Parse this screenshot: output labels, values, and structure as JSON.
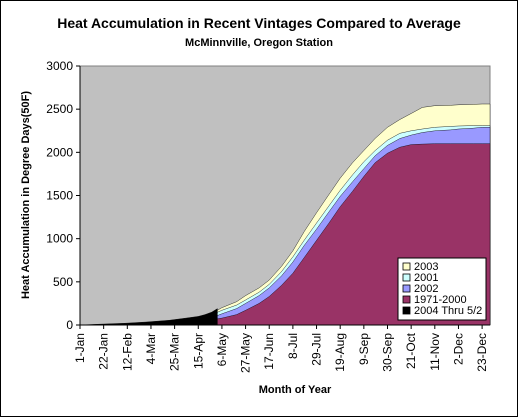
{
  "chart_data": {
    "type": "area",
    "title": "Heat Accumulation in Recent Vintages Compared to Average",
    "subtitle": "McMinnville, Oregon Station",
    "xlabel": "Month of Year",
    "ylabel": "Heat Accumulation in Degree Days(50F)",
    "ylim": [
      0,
      3000
    ],
    "yticks": [
      "0",
      "500",
      "1000",
      "1500",
      "2000",
      "2500",
      "3000"
    ],
    "x_day_range": [
      1,
      365
    ],
    "x_tick_days": [
      1,
      22,
      43,
      64,
      85,
      106,
      127,
      148,
      169,
      190,
      211,
      232,
      253,
      274,
      295,
      316,
      337,
      358
    ],
    "x_tick_labels": [
      "1-Jan",
      "22-Jan",
      "12-Feb",
      "4-Mar",
      "25-Mar",
      "15-Apr",
      "6-May",
      "27-May",
      "17-Jun",
      "8-Jul",
      "29-Jul",
      "19-Aug",
      "9-Sep",
      "30-Sep",
      "21-Oct",
      "11-Nov",
      "2-Dec",
      "23-Dec"
    ],
    "grid": false,
    "legend_position": "bottom-right",
    "series": [
      {
        "name": "2003",
        "color": "#FFFFCC",
        "x": [
          1,
          43,
          85,
          106,
          120,
          127,
          140,
          148,
          160,
          169,
          180,
          190,
          200,
          211,
          222,
          232,
          243,
          253,
          263,
          274,
          285,
          295,
          305,
          316,
          330,
          337,
          350,
          358,
          365
        ],
        "values": [
          0,
          15,
          45,
          90,
          150,
          200,
          270,
          340,
          430,
          520,
          680,
          860,
          1080,
          1300,
          1510,
          1700,
          1880,
          2020,
          2160,
          2290,
          2380,
          2450,
          2520,
          2540,
          2545,
          2550,
          2555,
          2560,
          2560
        ]
      },
      {
        "name": "2001",
        "color": "#CCFFFF",
        "x": [
          1,
          43,
          85,
          106,
          120,
          127,
          140,
          148,
          160,
          169,
          180,
          190,
          200,
          211,
          222,
          232,
          243,
          253,
          263,
          274,
          285,
          295,
          305,
          316,
          330,
          337,
          350,
          358,
          365
        ],
        "values": [
          0,
          12,
          40,
          80,
          130,
          170,
          230,
          290,
          380,
          470,
          620,
          790,
          980,
          1180,
          1380,
          1560,
          1740,
          1890,
          2020,
          2140,
          2220,
          2250,
          2270,
          2290,
          2300,
          2305,
          2310,
          2310,
          2310
        ]
      },
      {
        "name": "2002",
        "color": "#9999FF",
        "x": [
          1,
          43,
          85,
          106,
          120,
          127,
          140,
          148,
          160,
          169,
          180,
          190,
          200,
          211,
          222,
          232,
          243,
          253,
          263,
          274,
          285,
          295,
          305,
          316,
          330,
          337,
          350,
          358,
          365
        ],
        "values": [
          0,
          10,
          30,
          60,
          95,
          130,
          190,
          250,
          340,
          430,
          570,
          730,
          920,
          1110,
          1310,
          1490,
          1660,
          1810,
          1960,
          2080,
          2160,
          2200,
          2230,
          2250,
          2260,
          2270,
          2280,
          2290,
          2290
        ]
      },
      {
        "name": "1971-2000",
        "color": "#993366",
        "x": [
          1,
          43,
          85,
          106,
          120,
          127,
          140,
          148,
          160,
          169,
          180,
          190,
          200,
          211,
          222,
          232,
          243,
          253,
          263,
          274,
          285,
          295,
          305,
          316,
          330,
          337,
          350,
          358,
          365
        ],
        "values": [
          0,
          8,
          25,
          45,
          65,
          80,
          120,
          170,
          250,
          330,
          460,
          600,
          780,
          980,
          1180,
          1370,
          1550,
          1720,
          1880,
          1990,
          2060,
          2090,
          2095,
          2100,
          2100,
          2100,
          2100,
          2100,
          2100
        ]
      },
      {
        "name": "2004 Thru 5/2",
        "color": "#000000",
        "x": [
          1,
          20,
          40,
          60,
          80,
          95,
          106,
          112,
          118,
          123
        ],
        "values": [
          0,
          10,
          20,
          35,
          55,
          80,
          100,
          120,
          150,
          190
        ]
      }
    ]
  }
}
